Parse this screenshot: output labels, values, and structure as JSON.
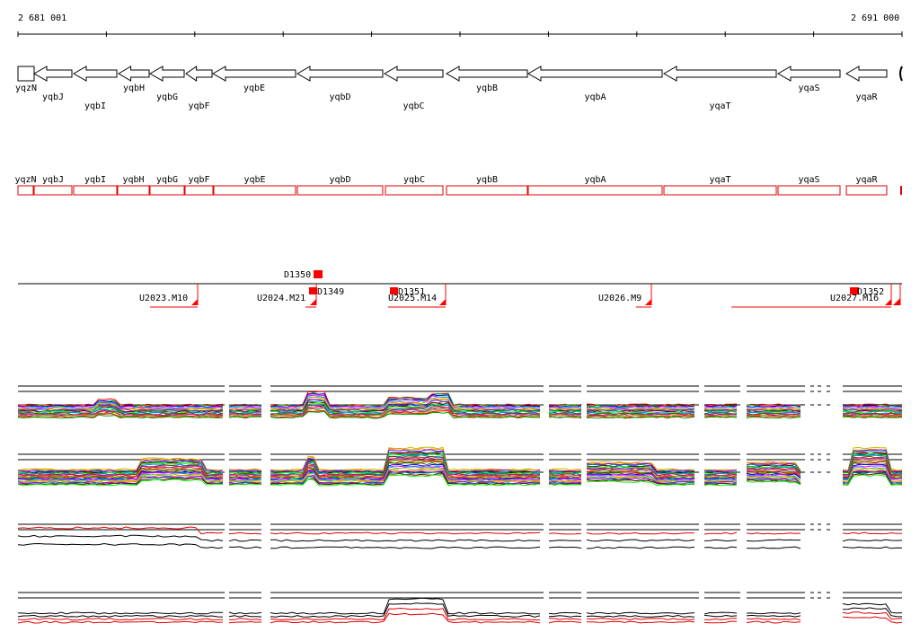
{
  "coords": {
    "start": "2 681 001",
    "end": "2 691 000"
  },
  "genes": [
    {
      "name": "yqzN",
      "x1": 20,
      "x2": 38,
      "arrow": false,
      "label_row": 0,
      "box": [
        20,
        37
      ]
    },
    {
      "name": "yqbJ",
      "x1": 38,
      "x2": 80,
      "arrow": true,
      "label_row": 1,
      "box": [
        38,
        80
      ]
    },
    {
      "name": "yqbI",
      "x1": 82,
      "x2": 130,
      "arrow": true,
      "label_row": 2,
      "box": [
        82,
        130
      ]
    },
    {
      "name": "yqbH",
      "x1": 132,
      "x2": 166,
      "arrow": true,
      "label_row": 0,
      "box": [
        131,
        166
      ]
    },
    {
      "name": "yqbG",
      "x1": 167,
      "x2": 205,
      "arrow": true,
      "label_row": 1,
      "box": [
        167,
        205
      ]
    },
    {
      "name": "yqbF",
      "x1": 207,
      "x2": 236,
      "arrow": true,
      "label_row": 2,
      "box": [
        206,
        237
      ]
    },
    {
      "name": "yqbE",
      "x1": 237,
      "x2": 329,
      "arrow": true,
      "label_row": 0,
      "box": [
        238,
        329
      ]
    },
    {
      "name": "yqbD",
      "x1": 331,
      "x2": 426,
      "arrow": true,
      "label_row": 1,
      "box": [
        331,
        426
      ]
    },
    {
      "name": "yqbC",
      "x1": 428,
      "x2": 493,
      "arrow": true,
      "label_row": 2,
      "box": [
        429,
        493
      ]
    },
    {
      "name": "yqbB",
      "x1": 497,
      "x2": 587,
      "arrow": true,
      "label_row": 0,
      "box": [
        497,
        587
      ]
    },
    {
      "name": "yqbA",
      "x1": 588,
      "x2": 737,
      "arrow": true,
      "label_row": 1,
      "box": [
        588,
        737
      ]
    },
    {
      "name": "yqaT",
      "x1": 739,
      "x2": 864,
      "arrow": true,
      "label_row": 2,
      "box": [
        739,
        864
      ]
    },
    {
      "name": "yqaS",
      "x1": 866,
      "x2": 935,
      "arrow": true,
      "label_row": 0,
      "box": [
        866,
        935
      ]
    },
    {
      "name": "yqaR",
      "x1": 942,
      "x2": 987,
      "arrow": true,
      "label_row": 1,
      "box": [
        942,
        987
      ]
    }
  ],
  "features": {
    "markers": [
      {
        "label": "D1350",
        "lx": 316,
        "ly": 309
      },
      {
        "label": "D1349",
        "lx": 353,
        "ly": 328
      },
      {
        "label": "D1351",
        "lx": 443,
        "ly": 328
      },
      {
        "label": "D1352",
        "lx": 954,
        "ly": 328
      }
    ],
    "segments": [
      {
        "label": "U2023.M10",
        "lx": 155,
        "ly": 335
      },
      {
        "label": "U2024.M21",
        "lx": 286,
        "ly": 335
      },
      {
        "label": "U2025.M14",
        "lx": 432,
        "ly": 335
      },
      {
        "label": "U2026.M9",
        "lx": 666,
        "ly": 335
      },
      {
        "label": "U2027.M16",
        "lx": 924,
        "ly": 335
      }
    ]
  },
  "colors": {
    "gene_box": "#e00000",
    "marker": "#ff0000",
    "expr_red": "#e00000",
    "axis": "#000000"
  }
}
